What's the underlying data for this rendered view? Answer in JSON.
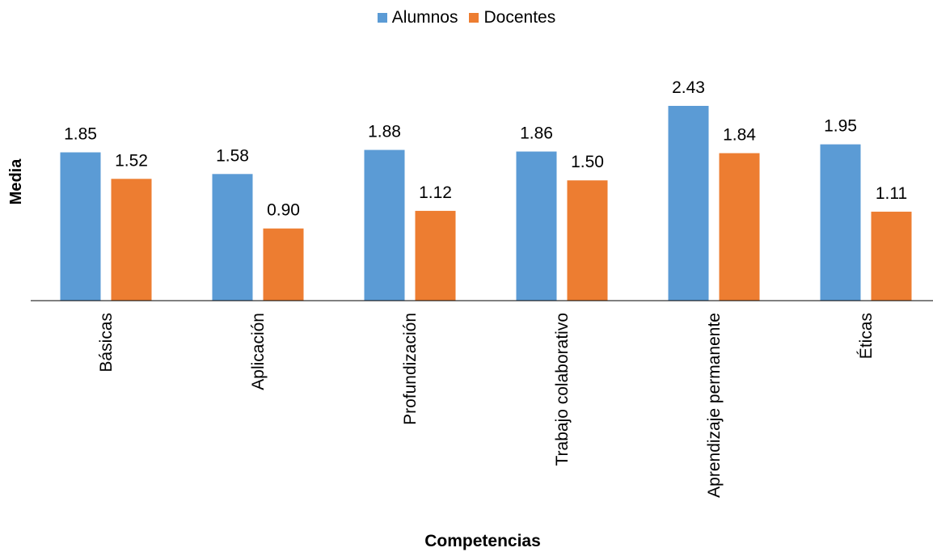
{
  "chart_data": {
    "type": "bar",
    "title": "",
    "xlabel": "Competencias",
    "ylabel": "Media",
    "categories": [
      "Básicas",
      "Aplicación",
      "Profundización",
      "Trabajo colaborativo",
      "Aprendizaje permanente",
      "Éticas"
    ],
    "series": [
      {
        "name": "Alumnos",
        "color": "#5B9BD5",
        "values": [
          1.85,
          1.58,
          1.88,
          1.86,
          2.43,
          1.95
        ],
        "labels": [
          "1.85",
          "1.58",
          "1.88",
          "1.86",
          "2.43",
          "1.95"
        ]
      },
      {
        "name": "Docentes",
        "color": "#ED7D31",
        "values": [
          1.52,
          0.9,
          1.12,
          1.5,
          1.84,
          1.11
        ],
        "labels": [
          "1.52",
          "0.90",
          "1.12",
          "1.50",
          "1.84",
          "1.11"
        ]
      }
    ],
    "ylim": [
      0,
      2.43
    ],
    "grid": false,
    "legend_position": "top"
  }
}
